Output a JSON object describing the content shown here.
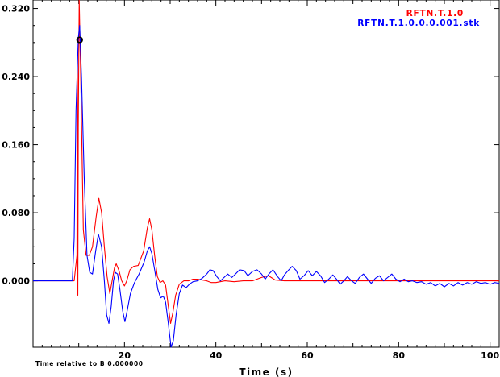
{
  "chart_data": {
    "type": "line",
    "title": "",
    "xlabel": "Time (s)",
    "ylabel": "",
    "note": "Time relative to B 0.000000",
    "xlim": [
      0,
      102
    ],
    "ylim": [
      -0.078,
      0.33
    ],
    "x_ticks": [
      20,
      40,
      60,
      80,
      100
    ],
    "y_ticks": [
      0.0,
      0.08,
      0.16,
      0.24,
      0.32
    ],
    "y_tick_labels": [
      "0.000",
      "0.080",
      "0.160",
      "0.240",
      "0.320"
    ],
    "grid": false,
    "legend_position": "top-right",
    "marker": {
      "label": "O",
      "x": 10.2,
      "y": 0.283
    },
    "colors": {
      "red": "#ff0000",
      "blue": "#0000ff"
    },
    "series": [
      {
        "name": "RFTN.T.1.0",
        "color": "#ff0000",
        "points": [
          [
            0,
            0
          ],
          [
            9.0,
            0
          ],
          [
            9.6,
            0.03
          ],
          [
            9.7,
            0.26
          ],
          [
            9.8,
            -0.017
          ],
          [
            9.9,
            0.18
          ],
          [
            10.1,
            0.33
          ],
          [
            10.5,
            0.22
          ],
          [
            11.0,
            0.06
          ],
          [
            11.6,
            0.03
          ],
          [
            12.3,
            0.03
          ],
          [
            13.0,
            0.04
          ],
          [
            13.8,
            0.075
          ],
          [
            14.4,
            0.097
          ],
          [
            15.0,
            0.08
          ],
          [
            15.6,
            0.04
          ],
          [
            16.2,
            0.005
          ],
          [
            16.8,
            -0.015
          ],
          [
            17.3,
            0.0
          ],
          [
            17.8,
            0.015
          ],
          [
            18.2,
            0.02
          ],
          [
            18.8,
            0.012
          ],
          [
            19.4,
            0.0
          ],
          [
            20.0,
            -0.006
          ],
          [
            20.5,
            0.0
          ],
          [
            21.2,
            0.013
          ],
          [
            22.0,
            0.017
          ],
          [
            23.0,
            0.018
          ],
          [
            24.2,
            0.035
          ],
          [
            25.0,
            0.062
          ],
          [
            25.5,
            0.073
          ],
          [
            26.0,
            0.06
          ],
          [
            26.6,
            0.03
          ],
          [
            27.2,
            0.005
          ],
          [
            27.8,
            -0.002
          ],
          [
            28.4,
            0.0
          ],
          [
            29.0,
            -0.005
          ],
          [
            29.6,
            -0.03
          ],
          [
            30.1,
            -0.05
          ],
          [
            30.6,
            -0.037
          ],
          [
            31.2,
            -0.017
          ],
          [
            32.0,
            -0.004
          ],
          [
            33.0,
            0.0
          ],
          [
            34.0,
            0.0
          ],
          [
            35.0,
            0.002
          ],
          [
            36.0,
            0.002
          ],
          [
            37.0,
            0.001
          ],
          [
            38.0,
            0.0
          ],
          [
            39.0,
            -0.002
          ],
          [
            40.0,
            -0.002
          ],
          [
            42.0,
            0.0
          ],
          [
            44.0,
            -0.001
          ],
          [
            46.0,
            0.0
          ],
          [
            48.0,
            0.0
          ],
          [
            50.0,
            0.004
          ],
          [
            51.5,
            0.006
          ],
          [
            53.0,
            0.001
          ],
          [
            55.0,
            0.0
          ],
          [
            57.0,
            0.0
          ],
          [
            60.0,
            0.0
          ],
          [
            65.0,
            0.0
          ],
          [
            70.0,
            0.0
          ],
          [
            80.0,
            0.0
          ],
          [
            90.0,
            0.0
          ],
          [
            102.0,
            0.0
          ]
        ]
      },
      {
        "name": "RFTN.T.1.0.0.0.001.stk",
        "color": "#0000ff",
        "points": [
          [
            0,
            0
          ],
          [
            8.6,
            0
          ],
          [
            9.0,
            0.05
          ],
          [
            9.4,
            0.2
          ],
          [
            9.9,
            0.285
          ],
          [
            10.2,
            0.3
          ],
          [
            10.6,
            0.24
          ],
          [
            11.2,
            0.12
          ],
          [
            11.8,
            0.03
          ],
          [
            12.4,
            0.01
          ],
          [
            13.0,
            0.008
          ],
          [
            13.7,
            0.035
          ],
          [
            14.3,
            0.055
          ],
          [
            15.0,
            0.04
          ],
          [
            15.6,
            0.0
          ],
          [
            16.1,
            -0.04
          ],
          [
            16.6,
            -0.05
          ],
          [
            17.1,
            -0.03
          ],
          [
            17.6,
            0.0
          ],
          [
            18.0,
            0.01
          ],
          [
            18.5,
            0.008
          ],
          [
            19.0,
            -0.01
          ],
          [
            19.6,
            -0.035
          ],
          [
            20.1,
            -0.048
          ],
          [
            20.6,
            -0.035
          ],
          [
            21.3,
            -0.015
          ],
          [
            22.2,
            -0.002
          ],
          [
            23.2,
            0.008
          ],
          [
            24.3,
            0.022
          ],
          [
            25.0,
            0.035
          ],
          [
            25.5,
            0.04
          ],
          [
            26.0,
            0.032
          ],
          [
            26.7,
            0.01
          ],
          [
            27.3,
            -0.01
          ],
          [
            27.9,
            -0.02
          ],
          [
            28.5,
            -0.018
          ],
          [
            29.0,
            -0.025
          ],
          [
            29.6,
            -0.05
          ],
          [
            30.2,
            -0.078
          ],
          [
            30.7,
            -0.07
          ],
          [
            31.3,
            -0.04
          ],
          [
            32.0,
            -0.015
          ],
          [
            32.7,
            -0.005
          ],
          [
            33.5,
            -0.008
          ],
          [
            34.2,
            -0.004
          ],
          [
            35.0,
            -0.001
          ],
          [
            36.0,
            0.0
          ],
          [
            37.0,
            0.003
          ],
          [
            38.0,
            0.008
          ],
          [
            38.7,
            0.013
          ],
          [
            39.4,
            0.012
          ],
          [
            40.2,
            0.005
          ],
          [
            41.0,
            0.0
          ],
          [
            41.8,
            0.004
          ],
          [
            42.6,
            0.008
          ],
          [
            43.5,
            0.004
          ],
          [
            44.3,
            0.008
          ],
          [
            45.2,
            0.013
          ],
          [
            46.2,
            0.012
          ],
          [
            47.0,
            0.006
          ],
          [
            48.0,
            0.011
          ],
          [
            49.0,
            0.013
          ],
          [
            50.0,
            0.008
          ],
          [
            50.8,
            0.002
          ],
          [
            51.6,
            0.008
          ],
          [
            52.5,
            0.013
          ],
          [
            53.5,
            0.005
          ],
          [
            54.3,
            0.0
          ],
          [
            55.0,
            0.007
          ],
          [
            55.8,
            0.012
          ],
          [
            56.7,
            0.017
          ],
          [
            57.6,
            0.012
          ],
          [
            58.4,
            0.002
          ],
          [
            59.3,
            0.006
          ],
          [
            60.2,
            0.012
          ],
          [
            61.1,
            0.006
          ],
          [
            62.0,
            0.011
          ],
          [
            62.9,
            0.006
          ],
          [
            63.8,
            -0.002
          ],
          [
            64.7,
            0.002
          ],
          [
            65.6,
            0.007
          ],
          [
            66.4,
            0.002
          ],
          [
            67.2,
            -0.004
          ],
          [
            68.0,
            0.0
          ],
          [
            68.8,
            0.005
          ],
          [
            69.7,
            0.0
          ],
          [
            70.5,
            -0.003
          ],
          [
            71.4,
            0.004
          ],
          [
            72.3,
            0.008
          ],
          [
            73.2,
            0.002
          ],
          [
            74.0,
            -0.003
          ],
          [
            74.9,
            0.003
          ],
          [
            75.8,
            0.006
          ],
          [
            76.7,
            0.0
          ],
          [
            77.6,
            0.004
          ],
          [
            78.5,
            0.008
          ],
          [
            79.4,
            0.002
          ],
          [
            80.3,
            -0.001
          ],
          [
            81.2,
            0.002
          ],
          [
            82.1,
            -0.001
          ],
          [
            83.0,
            0.0
          ],
          [
            84.0,
            -0.002
          ],
          [
            85.0,
            -0.001
          ],
          [
            86.0,
            -0.004
          ],
          [
            87.0,
            -0.002
          ],
          [
            88.0,
            -0.006
          ],
          [
            89.0,
            -0.003
          ],
          [
            90.0,
            -0.007
          ],
          [
            91.0,
            -0.003
          ],
          [
            92.0,
            -0.006
          ],
          [
            93.0,
            -0.002
          ],
          [
            94.0,
            -0.005
          ],
          [
            95.0,
            -0.002
          ],
          [
            96.0,
            -0.004
          ],
          [
            97.0,
            -0.001
          ],
          [
            98.0,
            -0.003
          ],
          [
            99.0,
            -0.002
          ],
          [
            100.0,
            -0.004
          ],
          [
            101.0,
            -0.002
          ],
          [
            102.0,
            -0.003
          ]
        ]
      }
    ]
  }
}
